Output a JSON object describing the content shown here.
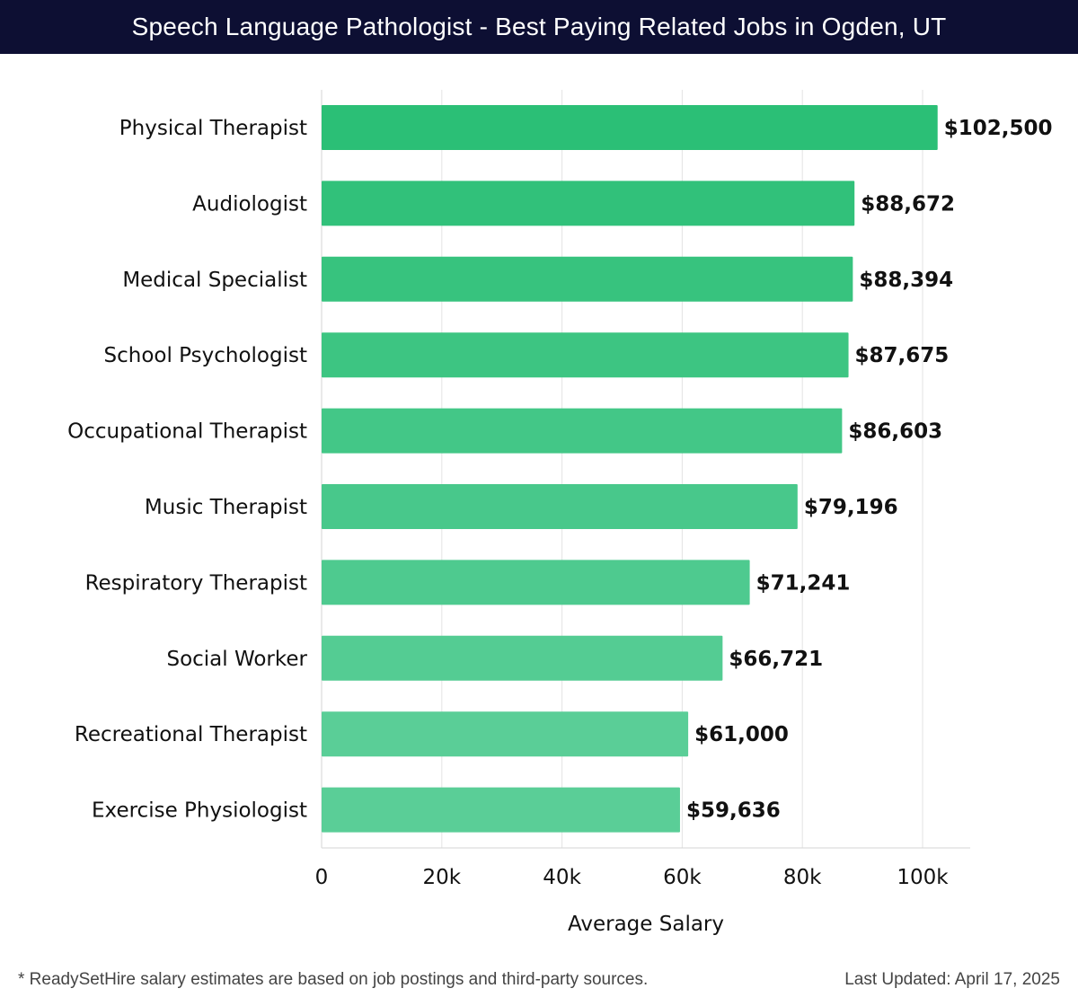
{
  "header": {
    "title": "Speech Language Pathologist - Best Paying Related Jobs in Ogden, UT"
  },
  "chart_data": {
    "type": "bar",
    "orientation": "horizontal",
    "title": "Speech Language Pathologist - Best Paying Related Jobs in Ogden, UT",
    "xlabel": "Average Salary",
    "ylabel": "",
    "xlim": [
      0,
      108000
    ],
    "grid": true,
    "categories": [
      "Physical Therapist",
      "Audiologist",
      "Medical Specialist",
      "School Psychologist",
      "Occupational Therapist",
      "Music Therapist",
      "Respiratory Therapist",
      "Social Worker",
      "Recreational Therapist",
      "Exercise Physiologist"
    ],
    "values": [
      102500,
      88672,
      88394,
      87675,
      86603,
      79196,
      71241,
      66721,
      61000,
      59636
    ],
    "value_labels": [
      "$102,500",
      "$88,672",
      "$88,394",
      "$87,675",
      "$86,603",
      "$79,196",
      "$71,241",
      "$66,721",
      "$61,000",
      "$59,636"
    ],
    "x_ticks": [
      0,
      20000,
      40000,
      60000,
      80000,
      100000
    ],
    "x_tick_labels": [
      "0",
      "20k",
      "40k",
      "60k",
      "80k",
      "100k"
    ],
    "bar_color_start": "#2bbf76",
    "bar_color_end": "#5ace97"
  },
  "footer": {
    "note": "* ReadySetHire salary estimates are based on job postings and third-party sources.",
    "updated": "Last Updated: April 17, 2025"
  }
}
